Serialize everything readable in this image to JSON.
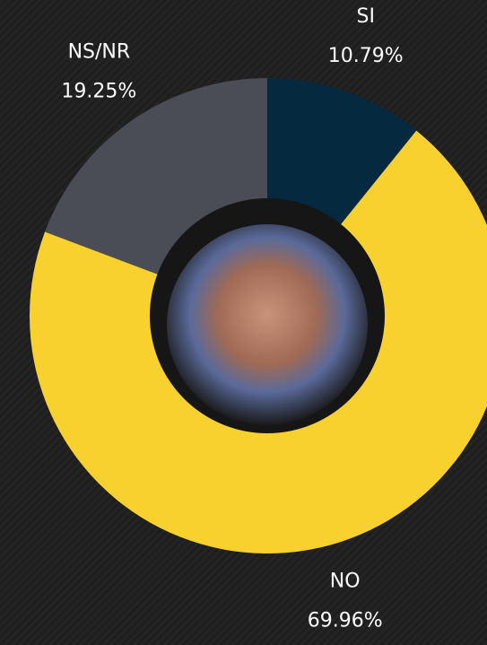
{
  "chart_data": {
    "type": "donut",
    "categories": [
      "SI",
      "NO",
      "NS/NR"
    ],
    "values": [
      10.79,
      69.96,
      19.25
    ],
    "value_labels": [
      "10.79%",
      "69.96%",
      "19.25%"
    ],
    "colors": [
      "#052a40",
      "#f8d12f",
      "#4a4d55"
    ]
  }
}
